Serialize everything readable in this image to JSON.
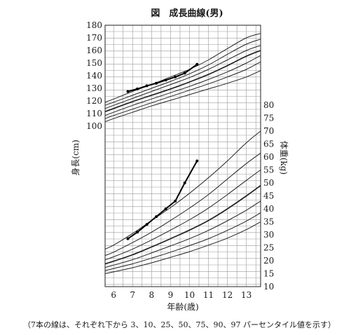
{
  "chart_data": {
    "type": "line",
    "title": "図　成長曲線(男)",
    "xlabel": "年齢(歳)",
    "ylabel_left": "身長(cm)",
    "ylabel_right": "体重(kg)",
    "note": "（7本の線は、それぞれ下から 3、10、25、50、75、90、97 パーセンタイル値を示す）",
    "x_ticks": [
      6,
      7,
      8,
      9,
      10,
      11,
      12,
      13
    ],
    "xlim": [
      5.55,
      13.75
    ],
    "height_axis": {
      "ticks": [
        100,
        110,
        120,
        130,
        140,
        150,
        160,
        170,
        180
      ],
      "ylim": [
        100,
        180
      ]
    },
    "weight_axis": {
      "ticks": [
        10,
        15,
        20,
        25,
        30,
        35,
        40,
        45,
        50,
        55,
        60,
        65,
        70,
        75,
        80
      ],
      "ylim": [
        10,
        80
      ]
    },
    "grid": true,
    "percentile_labels": [
      "3",
      "10",
      "25",
      "50",
      "75",
      "90",
      "97"
    ],
    "height_percentiles": {
      "x": [
        5.55,
        6,
        7,
        8,
        9,
        10,
        11,
        12,
        13,
        13.75
      ],
      "series": [
        {
          "name": "3",
          "values": [
            103.5,
            106,
            111,
            116,
            120.5,
            125,
            129.5,
            134,
            139,
            144
          ]
        },
        {
          "name": "10",
          "values": [
            106,
            108.5,
            113.5,
            118.5,
            123.5,
            128.5,
            133.5,
            139,
            145,
            151
          ]
        },
        {
          "name": "25",
          "values": [
            108.5,
            111,
            116.5,
            121.5,
            126.5,
            131.5,
            137,
            143,
            150,
            156
          ]
        },
        {
          "name": "50",
          "values": [
            111.5,
            114,
            119.5,
            124.5,
            129.5,
            135,
            141,
            148,
            155.5,
            160
          ]
        },
        {
          "name": "75",
          "values": [
            114,
            116.5,
            122,
            127.5,
            133,
            138.5,
            145,
            152.5,
            160,
            164
          ]
        },
        {
          "name": "90",
          "values": [
            116.5,
            119,
            124.5,
            130,
            135.5,
            141.5,
            148.5,
            157,
            165,
            169
          ]
        },
        {
          "name": "97",
          "values": [
            119,
            121.5,
            127.5,
            133,
            139,
            145,
            152.5,
            161.5,
            170,
            173.5
          ]
        }
      ]
    },
    "weight_percentiles": {
      "x": [
        5.55,
        6,
        7,
        8,
        9,
        10,
        11,
        12,
        13,
        13.75
      ],
      "series": [
        {
          "name": "3",
          "values": [
            15,
            15.7,
            17.3,
            19.2,
            21.3,
            23.5,
            26,
            28.7,
            32,
            35
          ]
        },
        {
          "name": "10",
          "values": [
            16.2,
            17,
            18.8,
            21,
            23.3,
            25.8,
            28.5,
            31.7,
            35.3,
            38.5
          ]
        },
        {
          "name": "25",
          "values": [
            17.4,
            18.3,
            20.4,
            23,
            25.7,
            28.5,
            31.7,
            35.4,
            39.5,
            43
          ]
        },
        {
          "name": "50",
          "values": [
            18.8,
            19.8,
            22.3,
            25.3,
            28.5,
            31.8,
            35.5,
            40,
            45,
            49
          ]
        },
        {
          "name": "75",
          "values": [
            20.3,
            21.5,
            24.5,
            28,
            31.8,
            35.8,
            40.3,
            45.5,
            51,
            55
          ]
        },
        {
          "name": "90",
          "values": [
            22,
            23.3,
            27,
            31,
            35.5,
            40.3,
            45.5,
            51.5,
            57.5,
            61.5
          ]
        },
        {
          "name": "97",
          "values": [
            24.5,
            26,
            30.5,
            35.5,
            40.5,
            46,
            52,
            58.5,
            65.5,
            70
          ]
        }
      ]
    },
    "observed_height": {
      "x": [
        6.75,
        7.25,
        7.75,
        8.25,
        8.75,
        9.25,
        9.75,
        10.4
      ],
      "values": [
        127.5,
        129.5,
        132,
        134,
        136.5,
        139,
        142,
        149
      ]
    },
    "observed_weight": {
      "x": [
        6.75,
        7.25,
        7.75,
        8.25,
        8.75,
        9.25,
        9.75,
        10.4
      ],
      "values": [
        28.5,
        31,
        34,
        37,
        40,
        43,
        50,
        58.5
      ]
    }
  }
}
